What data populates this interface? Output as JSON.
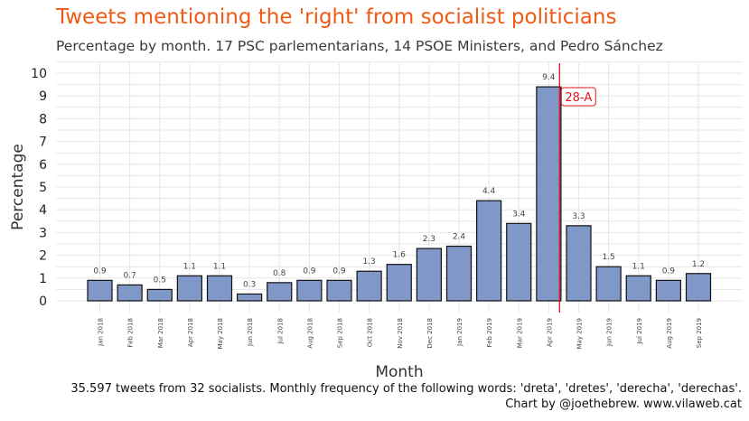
{
  "chart_data": {
    "type": "bar",
    "title": "Tweets mentioning the 'right' from socialist politicians",
    "subtitle": "Percentage by month. 17 PSC parlementarians, 14 PSOE Ministers, and Pedro Sánchez",
    "xlabel": "Month",
    "ylabel": "Percentage",
    "ylim": [
      0,
      10.5
    ],
    "yticks": [
      0,
      1,
      2,
      3,
      4,
      5,
      6,
      7,
      8,
      9,
      10
    ],
    "grid": true,
    "categories": [
      "Jan 2018",
      "Feb 2018",
      "Mar 2018",
      "Apr 2018",
      "May 2018",
      "Jun 2018",
      "Jul 2018",
      "Aug 2018",
      "Sep 2018",
      "Oct 2018",
      "Nov 2018",
      "Dec 2018",
      "Jan 2019",
      "Feb 2019",
      "Mar 2019",
      "Apr 2019",
      "May 2019",
      "Jun 2019",
      "Jul 2019",
      "Aug 2019",
      "Sep 2019"
    ],
    "values": [
      0.9,
      0.7,
      0.5,
      1.1,
      1.1,
      0.3,
      0.8,
      0.9,
      0.9,
      1.3,
      1.6,
      2.3,
      2.4,
      4.4,
      3.4,
      9.4,
      3.3,
      1.5,
      1.1,
      0.9,
      1.2
    ],
    "data_labels": [
      "0.9",
      "0.7",
      "0.5",
      "1.1",
      "1.1",
      "0.3",
      "0.8",
      "0.9",
      "0.9",
      "1.3",
      "1.6",
      "2.3",
      "2.4",
      "4.4",
      "3.4",
      "9.4",
      "3.3",
      "1.5",
      "1.1",
      "0.9",
      "1.2"
    ],
    "bar_color": "#8098c8",
    "annotation": {
      "label": "28-A",
      "between": [
        "Apr 2019",
        "May 2019"
      ],
      "color": "#e0141e"
    },
    "caption": [
      "35.597 tweets from 32 socialists. Monthly frequency of the following words: 'dreta', 'dretes', 'derecha', 'derechas'.",
      "Chart by @joethebrew. www.vilaweb.cat"
    ]
  }
}
